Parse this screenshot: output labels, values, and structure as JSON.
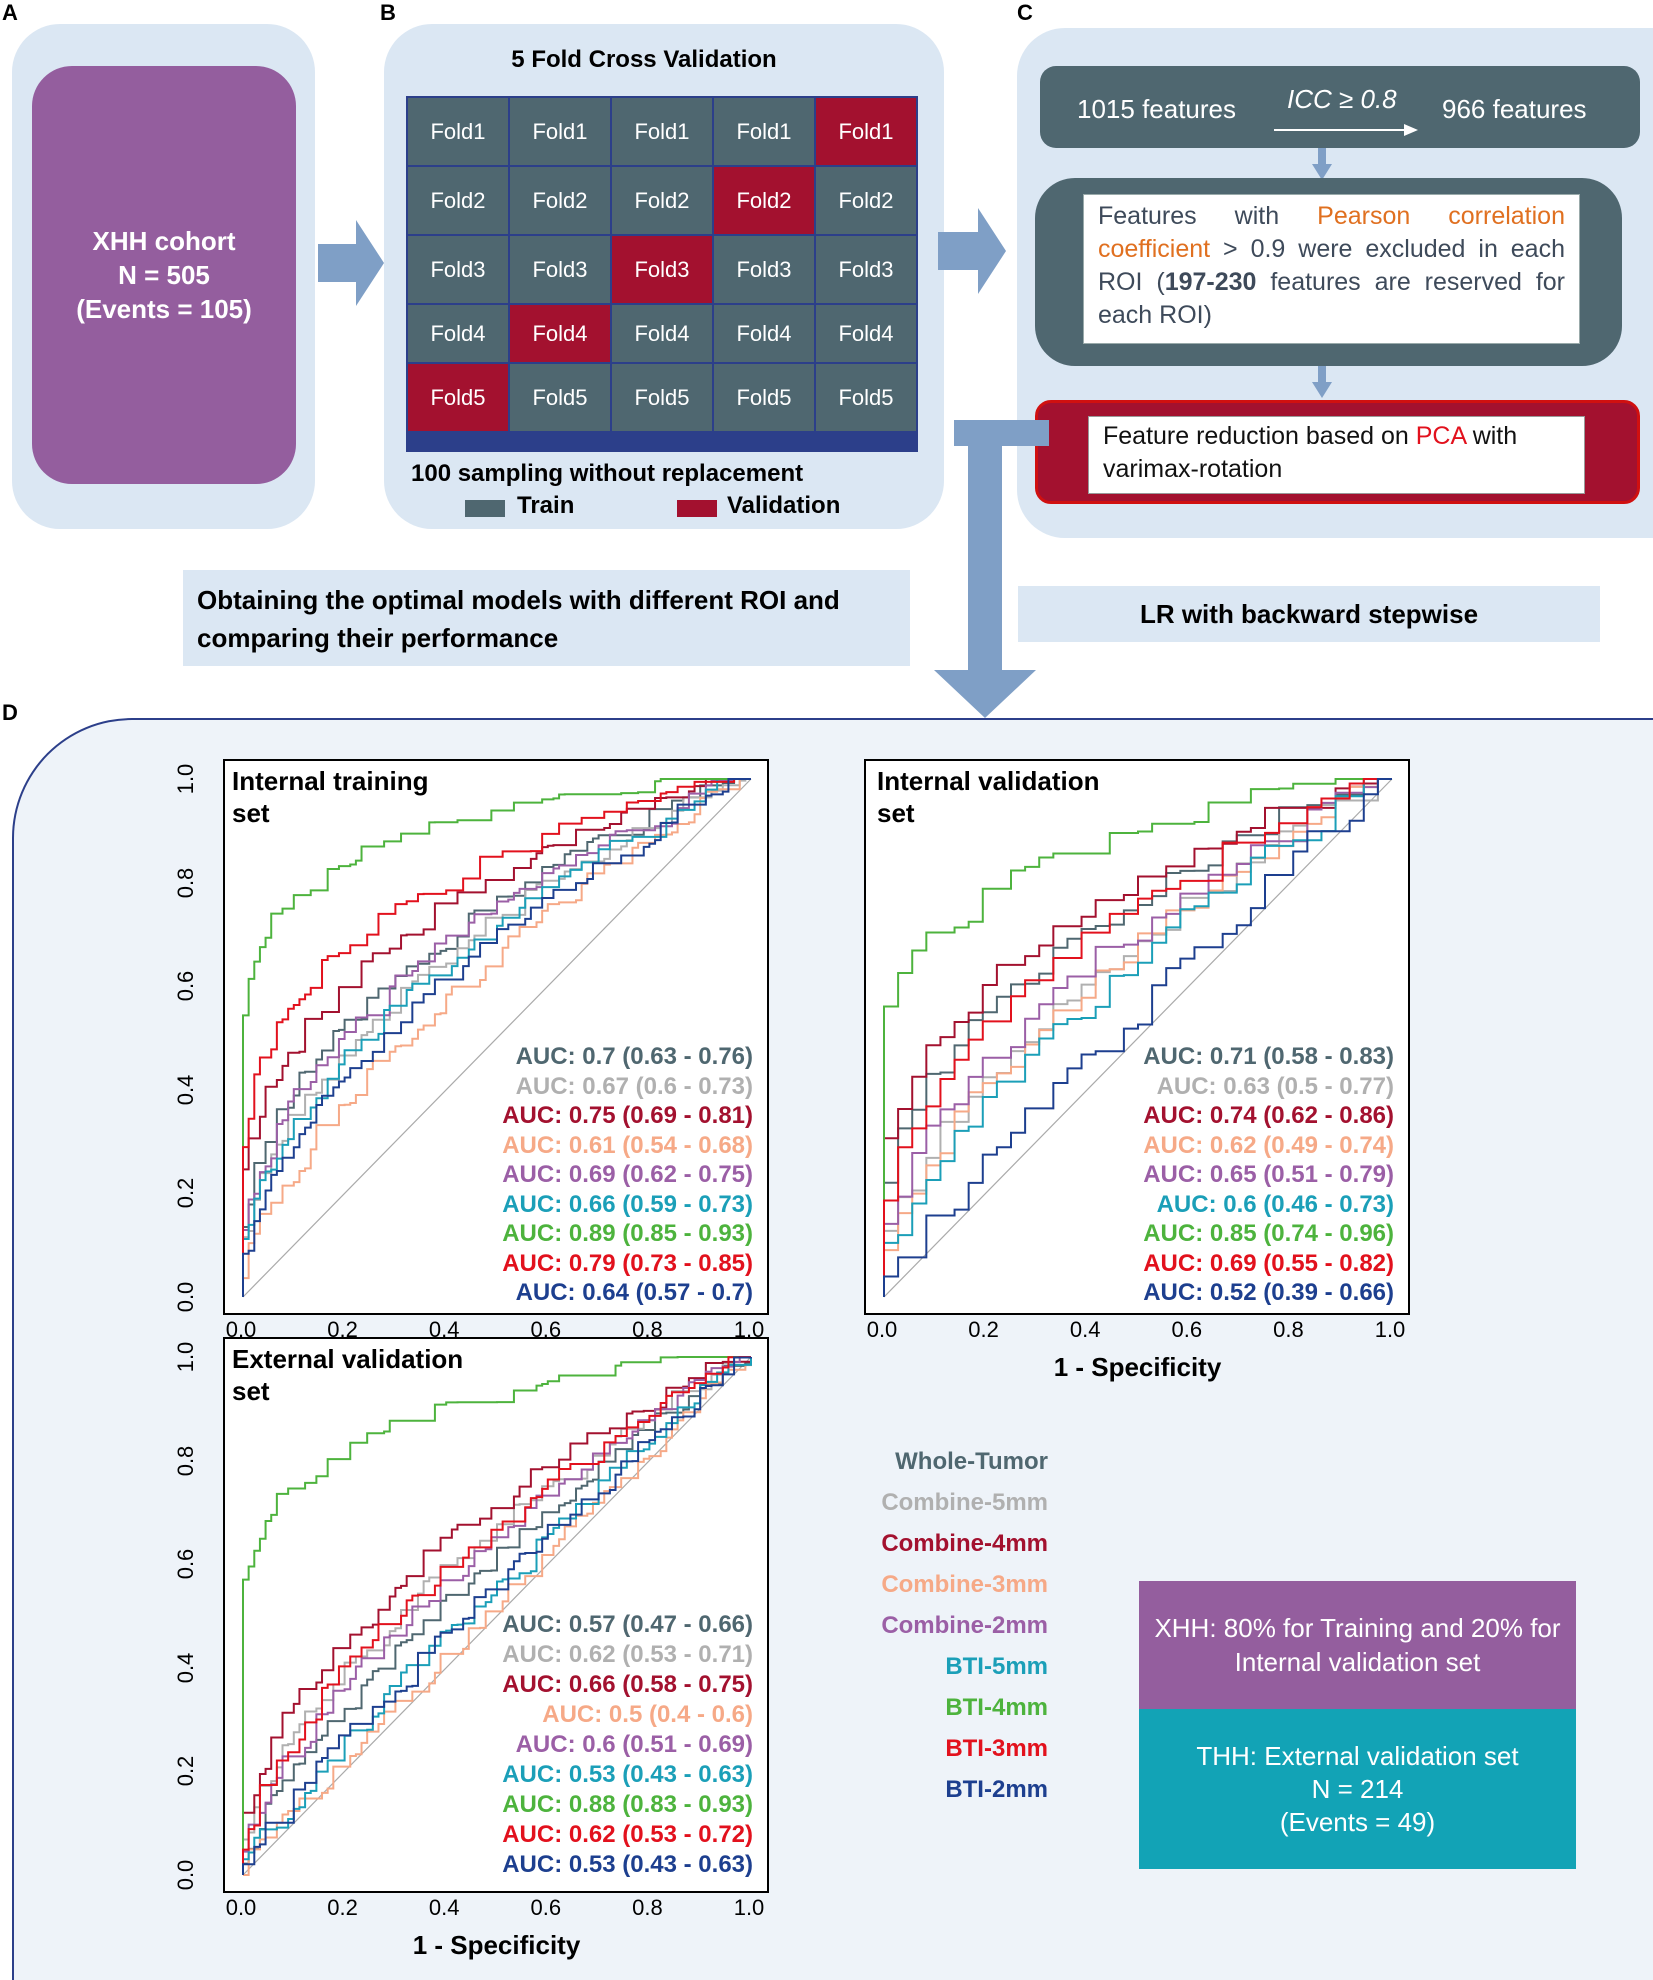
{
  "panels": {
    "a": "A",
    "b": "B",
    "c": "C",
    "d": "D"
  },
  "panel_a": {
    "title": "XHH cohort",
    "n": "N = 505",
    "events": "(Events = 105)"
  },
  "panel_b": {
    "title": "5 Fold Cross Validation",
    "rows": [
      [
        "Fold1",
        "Fold1",
        "Fold1",
        "Fold1",
        "Fold1"
      ],
      [
        "Fold2",
        "Fold2",
        "Fold2",
        "Fold2",
        "Fold2"
      ],
      [
        "Fold3",
        "Fold3",
        "Fold3",
        "Fold3",
        "Fold3"
      ],
      [
        "Fold4",
        "Fold4",
        "Fold4",
        "Fold4",
        "Fold4"
      ],
      [
        "Fold5",
        "Fold5",
        "Fold5",
        "Fold5",
        "Fold5"
      ]
    ],
    "validation_cols": [
      4,
      3,
      2,
      1,
      0
    ],
    "sampling": "100 sampling without replacement",
    "legend_train": "Train",
    "legend_validation": "Validation",
    "colors": {
      "train": "#4f6770",
      "validation": "#a3112f"
    }
  },
  "panel_c": {
    "features_in": "1015 features",
    "icc": "ICC ≥ 0.8",
    "features_out": "966 features",
    "pearson_1": "Features with ",
    "pearson_hl": "Pearson correlation coefficient",
    "pearson_2": " > 0.9 were excluded in each ROI (",
    "pearson_bold": "197-230",
    "pearson_3": " features are reserved for each ROI)",
    "pca_1": "Feature reduction based on ",
    "pca_hl": "PCA",
    "pca_2": " with varimax-rotation"
  },
  "captions": {
    "optimal": "Obtaining the optimal models with different ROI and comparing their performance",
    "lr": "LR with backward stepwise"
  },
  "chart_data": [
    {
      "type": "line",
      "title": "Internal training set",
      "xlabel": "",
      "ylabel": "",
      "xlim": [
        0,
        1
      ],
      "ylim": [
        0,
        1
      ],
      "x_ticks": [
        "0.0",
        "0.2",
        "0.4",
        "0.6",
        "0.8",
        "1.0"
      ],
      "y_ticks": [
        "0.0",
        "0.2",
        "0.4",
        "0.6",
        "0.8",
        "1.0"
      ],
      "series": [
        {
          "name": "Whole-Tumor",
          "auc": "0.7",
          "ci": "(0.63 - 0.76)",
          "color": "#4f6770"
        },
        {
          "name": "Combine-5mm",
          "auc": "0.67",
          "ci": "(0.6 - 0.73)",
          "color": "#b0b0b0"
        },
        {
          "name": "Combine-4mm",
          "auc": "0.75",
          "ci": "(0.69 - 0.81)",
          "color": "#a3112f"
        },
        {
          "name": "Combine-3mm",
          "auc": "0.61",
          "ci": "(0.54 - 0.68)",
          "color": "#f6a987"
        },
        {
          "name": "Combine-2mm",
          "auc": "0.69",
          "ci": "(0.62 - 0.75)",
          "color": "#9b5fa6"
        },
        {
          "name": "BTI-5mm",
          "auc": "0.66",
          "ci": "(0.59 - 0.73)",
          "color": "#1b9fb8"
        },
        {
          "name": "BTI-4mm",
          "auc": "0.89",
          "ci": "(0.85 - 0.93)",
          "color": "#4db33d"
        },
        {
          "name": "BTI-3mm",
          "auc": "0.79",
          "ci": "(0.73 - 0.85)",
          "color": "#e2111d"
        },
        {
          "name": "BTI-2mm",
          "auc": "0.64",
          "ci": "(0.57 - 0.7)",
          "color": "#1d3f8f"
        }
      ]
    },
    {
      "type": "line",
      "title": "Internal validation set",
      "xlabel": "1 - Specificity",
      "ylabel": "",
      "xlim": [
        0,
        1
      ],
      "ylim": [
        0,
        1
      ],
      "x_ticks": [
        "0.0",
        "0.2",
        "0.4",
        "0.6",
        "0.8",
        "1.0"
      ],
      "y_ticks": [],
      "series": [
        {
          "name": "Whole-Tumor",
          "auc": "0.71",
          "ci": "(0.58 - 0.83)",
          "color": "#4f6770"
        },
        {
          "name": "Combine-5mm",
          "auc": "0.63",
          "ci": "(0.5 - 0.77)",
          "color": "#b0b0b0"
        },
        {
          "name": "Combine-4mm",
          "auc": "0.74",
          "ci": "(0.62 - 0.86)",
          "color": "#a3112f"
        },
        {
          "name": "Combine-3mm",
          "auc": "0.62",
          "ci": "(0.49 - 0.74)",
          "color": "#f6a987"
        },
        {
          "name": "Combine-2mm",
          "auc": "0.65",
          "ci": "(0.51 - 0.79)",
          "color": "#9b5fa6"
        },
        {
          "name": "BTI-5mm",
          "auc": "0.6",
          "ci": "(0.46 - 0.73)",
          "color": "#1b9fb8"
        },
        {
          "name": "BTI-4mm",
          "auc": "0.85",
          "ci": "(0.74 - 0.96)",
          "color": "#4db33d"
        },
        {
          "name": "BTI-3mm",
          "auc": "0.69",
          "ci": "(0.55 - 0.82)",
          "color": "#e2111d"
        },
        {
          "name": "BTI-2mm",
          "auc": "0.52",
          "ci": "(0.39 - 0.66)",
          "color": "#1d3f8f"
        }
      ]
    },
    {
      "type": "line",
      "title": "External validation set",
      "xlabel": "1 - Specificity",
      "ylabel": "",
      "xlim": [
        0,
        1
      ],
      "ylim": [
        0,
        1
      ],
      "x_ticks": [
        "0.0",
        "0.2",
        "0.4",
        "0.6",
        "0.8",
        "1.0"
      ],
      "y_ticks": [
        "0.0",
        "0.2",
        "0.4",
        "0.6",
        "0.8",
        "1.0"
      ],
      "series": [
        {
          "name": "Whole-Tumor",
          "auc": "0.57",
          "ci": "(0.47 - 0.66)",
          "color": "#4f6770"
        },
        {
          "name": "Combine-5mm",
          "auc": "0.62",
          "ci": "(0.53 - 0.71)",
          "color": "#b0b0b0"
        },
        {
          "name": "Combine-4mm",
          "auc": "0.66",
          "ci": "(0.58 - 0.75)",
          "color": "#a3112f"
        },
        {
          "name": "Combine-3mm",
          "auc": "0.5",
          "ci": "(0.4 - 0.6)",
          "color": "#f6a987"
        },
        {
          "name": "Combine-2mm",
          "auc": "0.6",
          "ci": "(0.51 - 0.69)",
          "color": "#9b5fa6"
        },
        {
          "name": "BTI-5mm",
          "auc": "0.53",
          "ci": "(0.43 - 0.63)",
          "color": "#1b9fb8"
        },
        {
          "name": "BTI-4mm",
          "auc": "0.88",
          "ci": "(0.83 - 0.93)",
          "color": "#4db33d"
        },
        {
          "name": "BTI-3mm",
          "auc": "0.62",
          "ci": "(0.53 - 0.72)",
          "color": "#e2111d"
        },
        {
          "name": "BTI-2mm",
          "auc": "0.53",
          "ci": "(0.43 - 0.63)",
          "color": "#1d3f8f"
        }
      ]
    }
  ],
  "legend": {
    "items": [
      {
        "label": "Whole-Tumor",
        "color": "#4f6770"
      },
      {
        "label": "Combine-5mm",
        "color": "#b0b0b0"
      },
      {
        "label": "Combine-4mm",
        "color": "#a3112f"
      },
      {
        "label": "Combine-3mm",
        "color": "#f6a987"
      },
      {
        "label": "Combine-2mm",
        "color": "#9b5fa6"
      },
      {
        "label": "BTI-5mm",
        "color": "#1b9fb8"
      },
      {
        "label": "BTI-4mm",
        "color": "#4db33d"
      },
      {
        "label": "BTI-3mm",
        "color": "#e2111d"
      },
      {
        "label": "BTI-2mm",
        "color": "#1d3f8f"
      }
    ]
  },
  "info": {
    "xhh": "XHH: 80% for Training and 20% for Internal validation set",
    "thh_title": "THH: External validation set",
    "thh_n": "N = 214",
    "thh_events": "(Events = 49)",
    "colors": {
      "xhh": "#945e9e",
      "thh": "#12a3b6"
    }
  }
}
